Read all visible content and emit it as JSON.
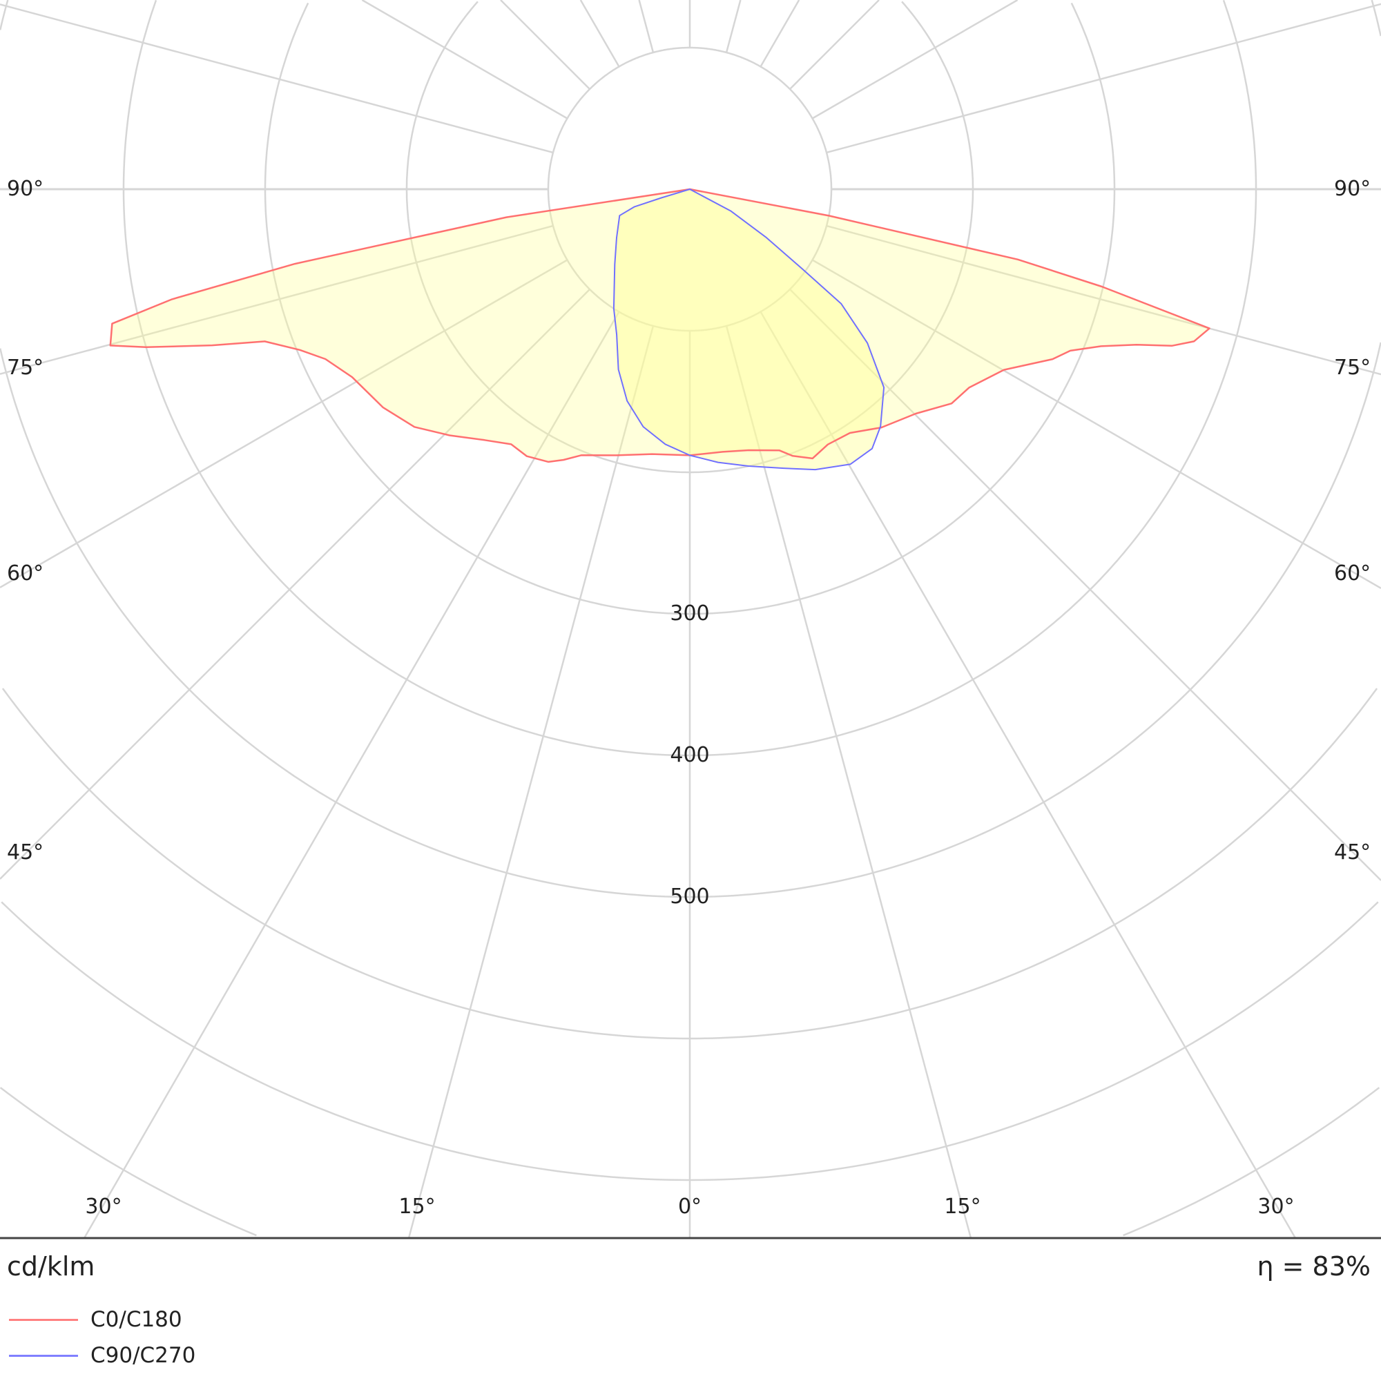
{
  "chart_data": {
    "type": "polar",
    "unit_label": "cd/klm",
    "efficiency_label": "η = 83%",
    "radial_ticks": [
      {
        "value": 300,
        "label": "300"
      },
      {
        "value": 400,
        "label": "400"
      },
      {
        "value": 500,
        "label": "500"
      }
    ],
    "radial_rings": [
      100,
      200,
      300,
      400,
      500,
      600,
      700,
      800,
      900,
      1000
    ],
    "angle_labels": {
      "left": [
        {
          "angle": 90,
          "label": "90°"
        },
        {
          "angle": 75,
          "label": "75°"
        },
        {
          "angle": 60,
          "label": "60°"
        },
        {
          "angle": 45,
          "label": "45°"
        }
      ],
      "right": [
        {
          "angle": 90,
          "label": "90°"
        },
        {
          "angle": 75,
          "label": "75°"
        },
        {
          "angle": 60,
          "label": "60°"
        },
        {
          "angle": 45,
          "label": "45°"
        }
      ],
      "bottom": [
        "30°",
        "15°",
        "0°",
        "15°",
        "30°"
      ]
    },
    "grid": true,
    "fill_color": "#ffff99",
    "legend_position": "bottom-left",
    "series": [
      {
        "name": "C0/C180",
        "color": "#ff7070",
        "c180": [
          [
            0,
            188
          ],
          [
            8.1,
            189
          ],
          [
            15.4,
            195
          ],
          [
            22.2,
            203
          ],
          [
            25,
            211
          ],
          [
            27.4,
            217
          ],
          [
            31.4,
            221
          ],
          [
            35,
            220
          ],
          [
            39.3,
            229
          ],
          [
            44.3,
            243
          ],
          [
            49.2,
            257
          ],
          [
            54.6,
            266
          ],
          [
            60.9,
            273
          ],
          [
            65,
            284
          ],
          [
            67.6,
            298
          ],
          [
            70.3,
            319
          ],
          [
            71.9,
            355
          ],
          [
            73.8,
            400
          ],
          [
            74.9,
            424
          ],
          [
            76.9,
            419
          ],
          [
            78,
            374
          ],
          [
            79.3,
            284
          ],
          [
            81.3,
            131
          ],
          [
            90,
            0
          ]
        ],
        "c0": [
          [
            0,
            188
          ],
          [
            7.1,
            187
          ],
          [
            12.7,
            189
          ],
          [
            18.9,
            195
          ],
          [
            21.1,
            202
          ],
          [
            24.5,
            209
          ],
          [
            28.4,
            205
          ],
          [
            33.3,
            206
          ],
          [
            38.8,
            216
          ],
          [
            45.2,
            225
          ],
          [
            50.7,
            239
          ],
          [
            54.6,
            242
          ],
          [
            60.1,
            256
          ],
          [
            64.9,
            283
          ],
          [
            67,
            292
          ],
          [
            69.1,
            311
          ],
          [
            70.8,
            334
          ],
          [
            72,
            358
          ],
          [
            73.2,
            372
          ],
          [
            75,
            380
          ],
          [
            76.7,
            299
          ],
          [
            77.9,
            237
          ],
          [
            79.2,
            100
          ],
          [
            90,
            0
          ]
        ]
      },
      {
        "name": "C90/C270",
        "color": "#7070ff",
        "c270": [
          [
            0,
            188
          ],
          [
            5.5,
            181
          ],
          [
            11.1,
            171
          ],
          [
            16.5,
            156
          ],
          [
            21.6,
            137
          ],
          [
            26.7,
            115
          ],
          [
            32.5,
            100
          ],
          [
            45,
            75
          ],
          [
            56.5,
            62
          ],
          [
            69.4,
            53
          ],
          [
            72.4,
            41
          ],
          [
            73.1,
            21
          ],
          [
            90,
            0
          ]
        ],
        "c90": [
          [
            0,
            188
          ],
          [
            5.9,
            194
          ],
          [
            12,
            200
          ],
          [
            18.6,
            208
          ],
          [
            24.1,
            217
          ],
          [
            30.3,
            225
          ],
          [
            35.1,
            224
          ],
          [
            38.8,
            215
          ],
          [
            44.4,
            196
          ],
          [
            49.1,
            166
          ],
          [
            52.9,
            134
          ],
          [
            54.7,
            97
          ],
          [
            57.7,
            64
          ],
          [
            62,
            33
          ],
          [
            90,
            0
          ]
        ]
      }
    ]
  }
}
